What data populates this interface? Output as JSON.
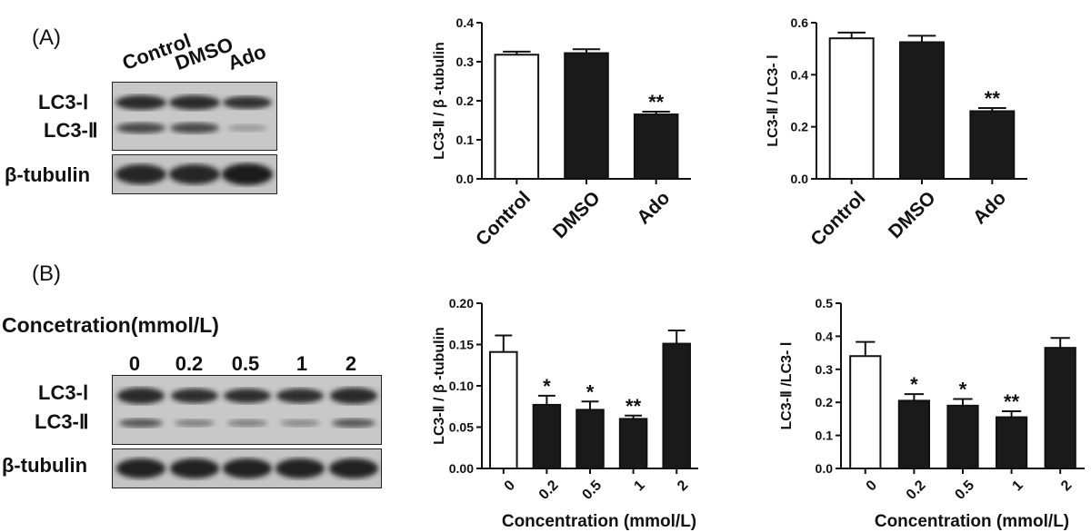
{
  "panels": {
    "A": {
      "label": "(A)",
      "lanes": [
        "Control",
        "DMSO",
        "Ado"
      ],
      "bands": {
        "lc3i": "LC3-Ⅰ",
        "lc3ii": "LC3-Ⅱ",
        "tubulin": "β-tubulin"
      }
    },
    "B": {
      "label": "(B)",
      "title": "Concetration(mmol/L)",
      "lanes": [
        "0",
        "0.2",
        "0.5",
        "1",
        "2"
      ],
      "bands": {
        "lc3i": "LC3-Ⅰ",
        "lc3ii": "LC3-Ⅱ",
        "tubulin": "β-tubulin"
      }
    }
  },
  "chart_data": [
    {
      "type": "bar",
      "categories": [
        "Control",
        "DMSO",
        "Ado"
      ],
      "values": [
        0.318,
        0.322,
        0.165
      ],
      "errors": [
        0.008,
        0.01,
        0.007
      ],
      "annotations": [
        "",
        "",
        "**"
      ],
      "fills": [
        "#ffffff",
        "#1a1a1a",
        "#1a1a1a"
      ],
      "ylabel": "LC3-Ⅱ / β -tubulin",
      "xlabel": "",
      "ylim": [
        0,
        0.4
      ],
      "yticks": [
        "0.0",
        "0.1",
        "0.2",
        "0.3",
        "0.4"
      ]
    },
    {
      "type": "bar",
      "categories": [
        "Control",
        "DMSO",
        "Ado"
      ],
      "values": [
        0.54,
        0.525,
        0.26
      ],
      "errors": [
        0.022,
        0.025,
        0.012
      ],
      "annotations": [
        "",
        "",
        "**"
      ],
      "fills": [
        "#ffffff",
        "#1a1a1a",
        "#1a1a1a"
      ],
      "ylabel": "LC3-Ⅱ / LC3- Ⅰ",
      "xlabel": "",
      "ylim": [
        0,
        0.6
      ],
      "yticks": [
        "0.0",
        "0.2",
        "0.4",
        "0.6"
      ]
    },
    {
      "type": "bar",
      "categories": [
        "0",
        "0.2",
        "0.5",
        "1",
        "2"
      ],
      "values": [
        0.141,
        0.077,
        0.071,
        0.06,
        0.151
      ],
      "errors": [
        0.02,
        0.011,
        0.01,
        0.004,
        0.016
      ],
      "annotations": [
        "",
        "*",
        "*",
        "**",
        ""
      ],
      "fills": [
        "#ffffff",
        "#1a1a1a",
        "#1a1a1a",
        "#1a1a1a",
        "#1a1a1a"
      ],
      "ylabel": "LC3-Ⅱ / β -tubulin",
      "xlabel": "Concentration (mmol/L)",
      "ylim": [
        0,
        0.2
      ],
      "yticks": [
        "0.00",
        "0.05",
        "0.10",
        "0.15",
        "0.20"
      ]
    },
    {
      "type": "bar",
      "categories": [
        "0",
        "0.2",
        "0.5",
        "1",
        "2"
      ],
      "values": [
        0.34,
        0.205,
        0.19,
        0.155,
        0.365
      ],
      "errors": [
        0.043,
        0.02,
        0.02,
        0.018,
        0.03
      ],
      "annotations": [
        "",
        "*",
        "*",
        "**",
        ""
      ],
      "fills": [
        "#ffffff",
        "#1a1a1a",
        "#1a1a1a",
        "#1a1a1a",
        "#1a1a1a"
      ],
      "ylabel": "LC3-Ⅱ /LC3- Ⅰ",
      "xlabel": "Concentration (mmol/L)",
      "ylim": [
        0,
        0.5
      ],
      "yticks": [
        "0.0",
        "0.1",
        "0.2",
        "0.3",
        "0.4",
        "0.5"
      ]
    }
  ]
}
